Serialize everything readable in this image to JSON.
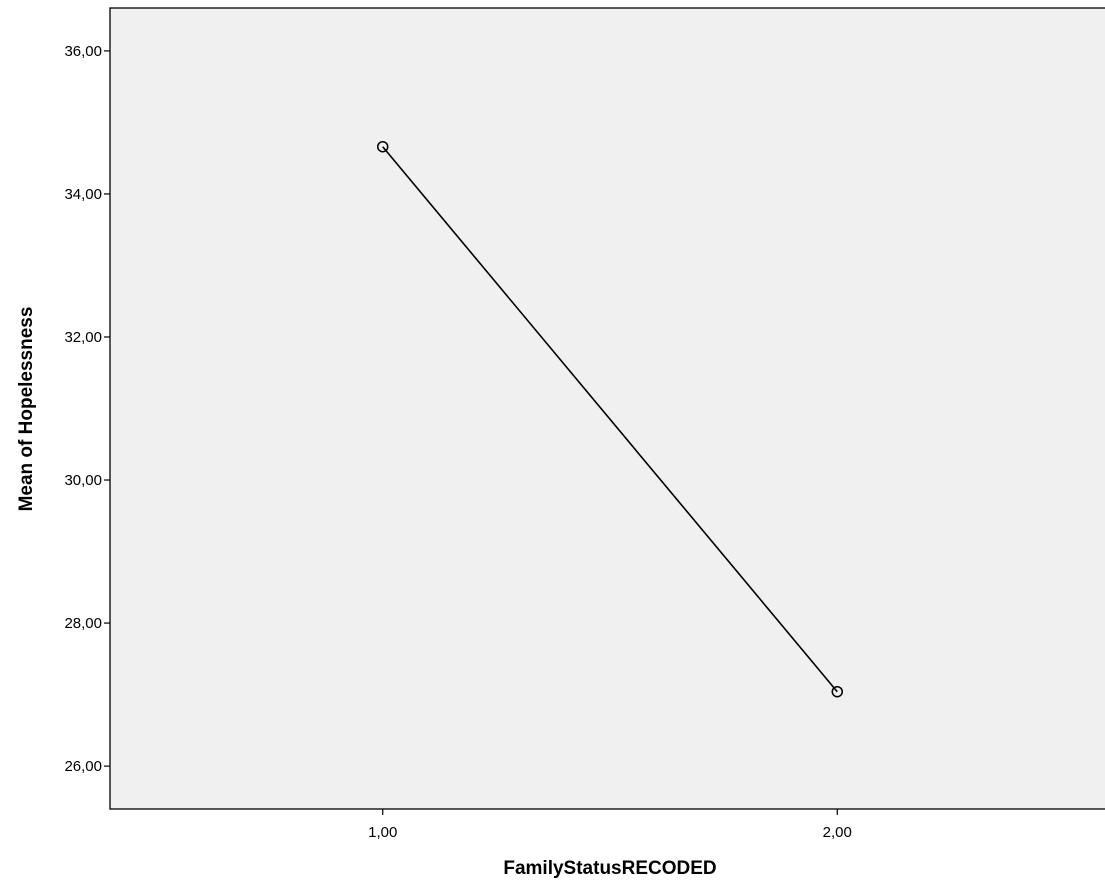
{
  "chart_data": {
    "type": "line",
    "title": "",
    "xlabel": "FamilyStatusRECODED",
    "ylabel": "Mean of Hopelessness",
    "x_categories": [
      "1,00",
      "2,00"
    ],
    "series": [
      {
        "values": [
          34.66,
          27.04
        ],
        "marker": "circle-open",
        "color": "#000000"
      }
    ],
    "ylim": [
      25.4,
      36.6
    ],
    "yticks": [
      26,
      28,
      30,
      32,
      34,
      36
    ],
    "ytick_labels": [
      "26,00",
      "28,00",
      "30,00",
      "32,00",
      "34,00",
      "36,00"
    ],
    "xlim": [
      0.4,
      2.6
    ],
    "grid": false,
    "legend": "none",
    "plot_background": "#f0f0f0"
  }
}
